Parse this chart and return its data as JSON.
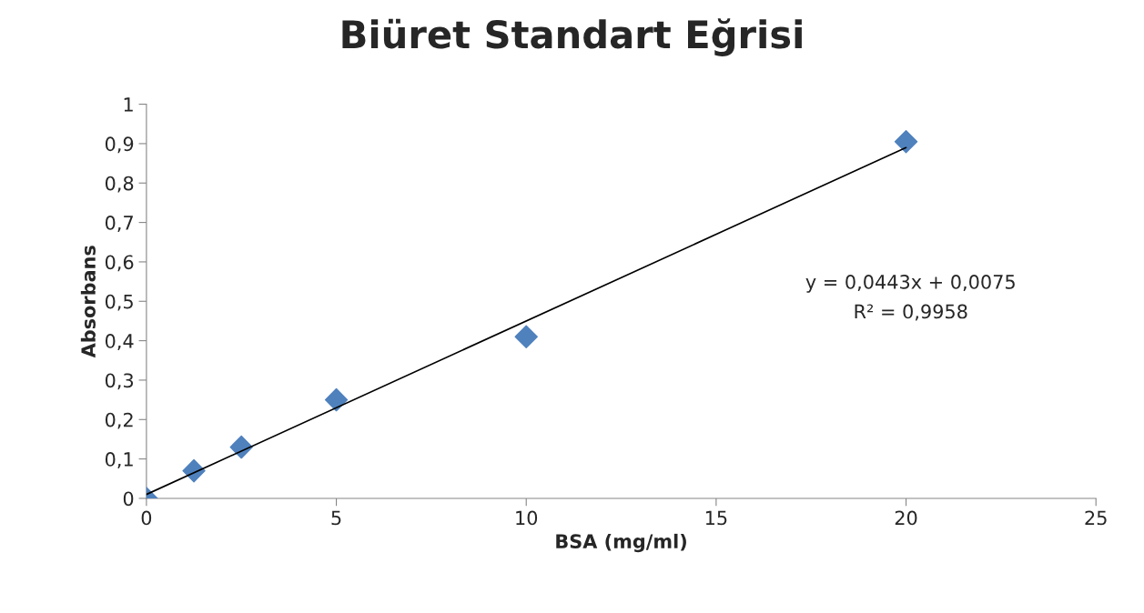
{
  "chart_data": {
    "type": "scatter",
    "title": "Biüret Standart Eğrisi",
    "xlabel": "BSA (mg/ml)",
    "ylabel": "Absorbans",
    "x": [
      0,
      1.25,
      2.5,
      5,
      10,
      20
    ],
    "series": [
      {
        "type": "scatter",
        "color": "#4f81bd",
        "marker": "diamond",
        "values": [
          0,
          0.07,
          0.13,
          0.25,
          0.41,
          0.905
        ]
      },
      {
        "type": "line",
        "color": "#000000",
        "marker": "none",
        "line_style": "solid",
        "x": [
          0,
          20
        ],
        "values": [
          0.01,
          0.89
        ]
      }
    ],
    "annotations": [
      "y = 0,0443x + 0,0075",
      "R² = 0,9958"
    ],
    "xlim": [
      0,
      25
    ],
    "xticks": [
      0,
      5,
      10,
      15,
      20,
      25
    ],
    "ylim": [
      0,
      1
    ],
    "yticks": [
      0,
      {
        "value": 0.1,
        "label": "0,1"
      },
      {
        "value": 0.2,
        "label": "0,2"
      },
      {
        "value": 0.3,
        "label": "0,3"
      },
      {
        "value": 0.4,
        "label": "0,4"
      },
      {
        "value": 0.5,
        "label": "0,5"
      },
      {
        "value": 0.6,
        "label": "0,6"
      },
      {
        "value": 0.7,
        "label": "0,7"
      },
      {
        "value": 0.8,
        "label": "0,8"
      },
      {
        "value": 0.9,
        "label": "0,9"
      },
      1
    ],
    "grid": false,
    "legend": false
  }
}
